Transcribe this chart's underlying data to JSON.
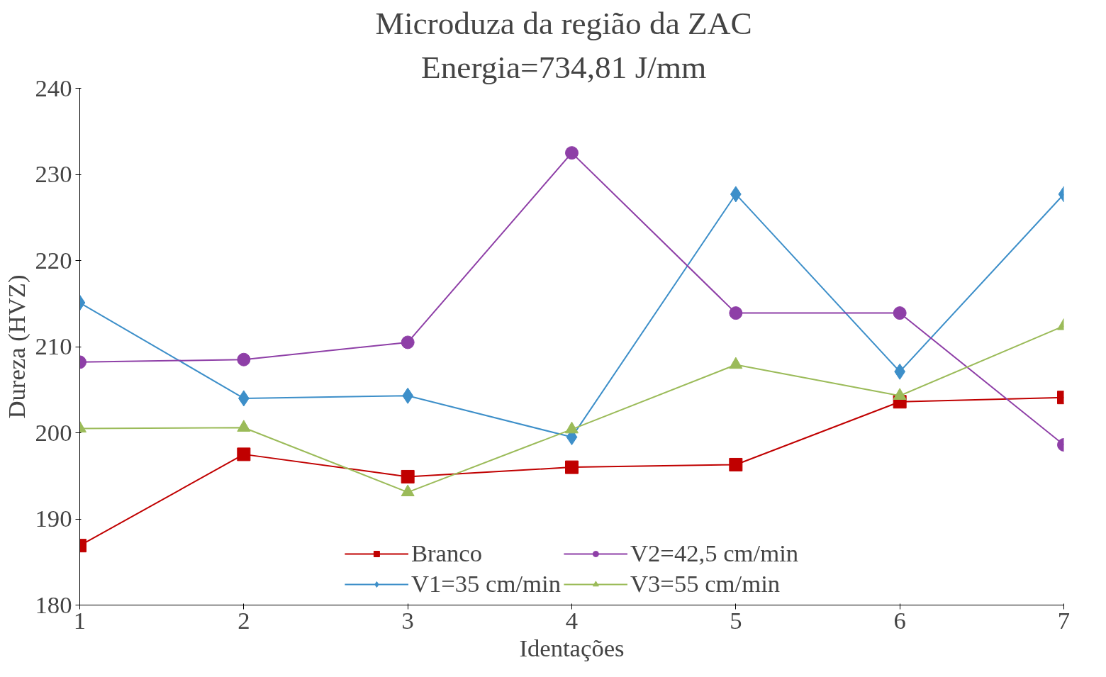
{
  "chart_data": {
    "type": "line",
    "title": "Microduza  da região  da ZAC",
    "subtitle": "Energia=734,81   J/mm",
    "xlabel": "Identações",
    "ylabel": "Dureza (HVZ)",
    "x": [
      1,
      2,
      3,
      4,
      5,
      6,
      7
    ],
    "xlim": [
      1,
      7
    ],
    "xticks": [
      1,
      2,
      3,
      4,
      5,
      6,
      7
    ],
    "ylim": [
      180,
      240
    ],
    "yticks": [
      180,
      190,
      200,
      210,
      220,
      230,
      240
    ],
    "grid": false,
    "legend": "bottom",
    "series": [
      {
        "name": "Branco",
        "color": "#c00000",
        "marker": "square",
        "values": [
          186.9,
          197.5,
          194.9,
          196.0,
          196.3,
          203.6,
          204.1
        ]
      },
      {
        "name": "V1=35 cm/min",
        "color": "#3d8fc9",
        "marker": "diamond",
        "values": [
          215.1,
          204.0,
          204.3,
          199.5,
          227.7,
          207.1,
          227.7
        ]
      },
      {
        "name": "V2=42,5 cm/min",
        "color": "#8e3fa7",
        "marker": "circle",
        "values": [
          208.2,
          208.5,
          210.5,
          232.5,
          213.9,
          213.9,
          198.6
        ]
      },
      {
        "name": "V3=55 cm/min",
        "color": "#9bbb59",
        "marker": "triangle",
        "values": [
          200.5,
          200.6,
          193.1,
          200.4,
          207.9,
          204.3,
          212.4
        ]
      }
    ]
  }
}
